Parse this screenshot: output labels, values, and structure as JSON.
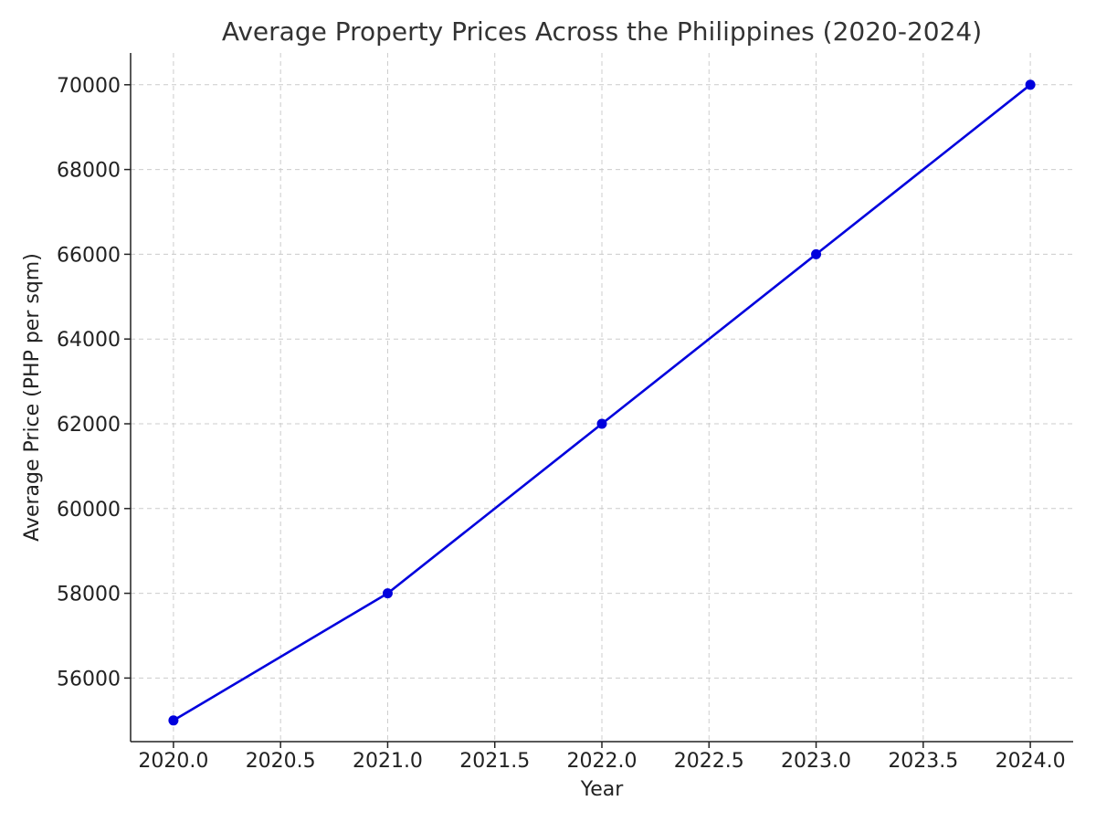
{
  "chart_data": {
    "type": "line",
    "title": "Average Property Prices Across the Philippines (2020-2024)",
    "xlabel": "Year",
    "ylabel": "Average Price (PHP per sqm)",
    "xlim": [
      2019.8,
      2024.2
    ],
    "ylim": [
      54500,
      70750
    ],
    "x_ticks": [
      2020.0,
      2020.5,
      2021.0,
      2021.5,
      2022.0,
      2022.5,
      2023.0,
      2023.5,
      2024.0
    ],
    "x_tick_labels": [
      "2020.0",
      "2020.5",
      "2021.0",
      "2021.5",
      "2022.0",
      "2022.5",
      "2023.0",
      "2023.5",
      "2024.0"
    ],
    "y_ticks": [
      56000,
      58000,
      60000,
      62000,
      64000,
      66000,
      68000,
      70000
    ],
    "y_tick_labels": [
      "56000",
      "58000",
      "60000",
      "62000",
      "64000",
      "66000",
      "68000",
      "70000"
    ],
    "grid": true,
    "series": [
      {
        "color": "#0000dd",
        "marker": "circle",
        "x": [
          2020,
          2021,
          2022,
          2023,
          2024
        ],
        "y": [
          55000,
          58000,
          62000,
          66000,
          70000
        ]
      }
    ]
  }
}
